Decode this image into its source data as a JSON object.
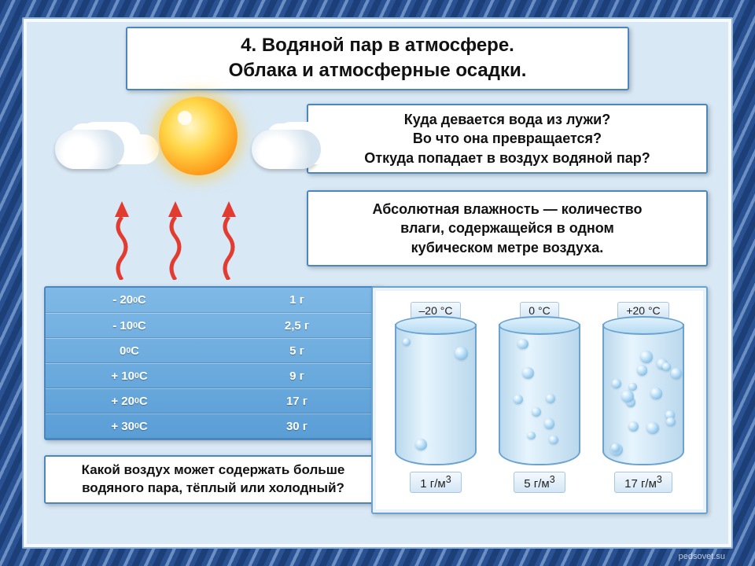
{
  "title": {
    "line1": "4. Водяной пар в атмосфере.",
    "line2": "Облака и атмосферные осадки."
  },
  "question1": {
    "l1": "Куда девается вода из лужи?",
    "l2": "Во что она превращается?",
    "l3": "Откуда попадает в воздух водяной пар?"
  },
  "definition": {
    "l1": "Абсолютная влажность — количество",
    "l2": "влаги, содержащейся в одном",
    "l3": "кубическом метре воздуха."
  },
  "question2": {
    "l1": "Какой воздух может содержать больше",
    "l2": "водяного пара, тёплый или холодный?"
  },
  "table": {
    "rows": [
      {
        "temp_prefix": "- 20 ",
        "temp_unit": "0С",
        "value": "1 г"
      },
      {
        "temp_prefix": "- 10 ",
        "temp_unit": "0С",
        "value": "2,5 г"
      },
      {
        "temp_prefix": "0 ",
        "temp_unit": "0С",
        "value": "5 г"
      },
      {
        "temp_prefix": "+ 10 ",
        "temp_unit": "0С",
        "value": "9 г"
      },
      {
        "temp_prefix": "+ 20 ",
        "temp_unit": "0С",
        "value": "17 г"
      },
      {
        "temp_prefix": "+ 30 ",
        "temp_unit": "0С",
        "value": "30 г"
      }
    ],
    "colors": {
      "bg_top": "#7fb9e6",
      "bg_bot": "#5a9ed6",
      "text": "#ffffff"
    }
  },
  "cylinders": [
    {
      "top": "–20 °C",
      "bottom": "1 г/м³",
      "bubble_count": 3
    },
    {
      "top": "0 °C",
      "bottom": "5 г/м³",
      "bubble_count": 8
    },
    {
      "top": "+20 °C",
      "bottom": "17 г/м³",
      "bubble_count": 16
    }
  ],
  "arrow_color": "#e23b2f",
  "watermark": "pedsovet.su"
}
